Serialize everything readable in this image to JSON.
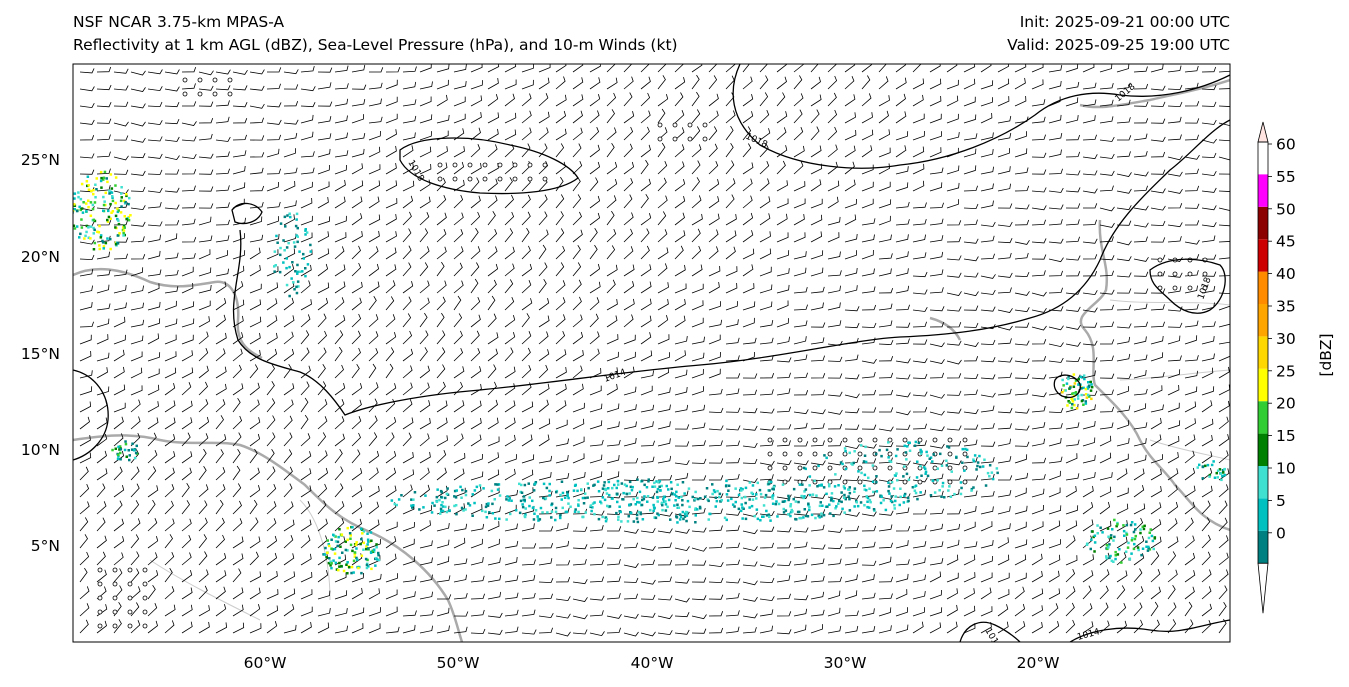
{
  "header": {
    "title_left_1": "NSF NCAR 3.75-km MPAS-A",
    "title_left_2": "Reflectivity at 1 km AGL (dBZ), Sea-Level Pressure (hPa), and 10-m Winds (kt)",
    "title_right_1": "Init: 2025-09-21 00:00 UTC",
    "title_right_2": "Valid: 2025-09-25 19:00 UTC"
  },
  "map": {
    "lat_labels": [
      "25°N",
      "20°N",
      "15°N",
      "10°N",
      "5°N"
    ],
    "lon_labels": [
      "60°W",
      "50°W",
      "40°W",
      "30°W",
      "20°W"
    ],
    "isobar_labels": [
      "1018",
      "1018",
      "1014",
      "1018",
      "1018",
      "1014",
      "1014"
    ]
  },
  "colorbar": {
    "label": "[dBZ]",
    "ticks": [
      "0",
      "5",
      "10",
      "15",
      "20",
      "25",
      "30",
      "35",
      "40",
      "45",
      "50",
      "55",
      "60"
    ],
    "colors": [
      "#008080",
      "#00c0c0",
      "#40e0d0",
      "#008000",
      "#32cd32",
      "#ffff00",
      "#ffd700",
      "#ffa500",
      "#ff8c00",
      "#cc0000",
      "#8b0000",
      "#ff00ff",
      "#ffe4e1"
    ]
  }
}
